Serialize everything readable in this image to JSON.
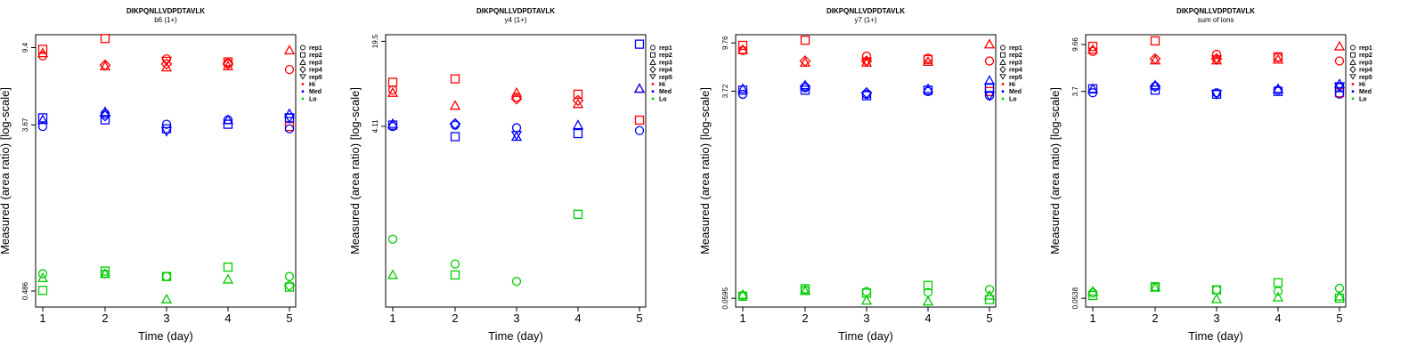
{
  "chart_data": [
    {
      "type": "scatter",
      "title": "DIKPQNLLVDPDTAVLK",
      "subtitle": "b6 (1+)",
      "xlabel": "Time (day)",
      "ylabel": "Measured (area ratio) [log-scale]",
      "ylim": [
        0.4,
        11
      ],
      "x_ticks": [
        "1",
        "2",
        "3",
        "4",
        "5"
      ],
      "y_ticks": [
        "0.486",
        "3.67",
        "9.4"
      ],
      "y_tick_values": [
        0.486,
        3.67,
        9.4
      ],
      "y_scale": "log",
      "legend": [
        "rep1",
        "rep2",
        "rep3",
        "rep4",
        "rep5",
        "Hi",
        "Med",
        "Lo"
      ],
      "legend_position": "right",
      "series": [
        {
          "name": "Hi",
          "color": "#ff0000",
          "rep1": [
            8.5,
            null,
            8.2,
            7.8,
            7.2
          ],
          "rep2": [
            9.2,
            10.5,
            null,
            7.9,
            3.6
          ],
          "rep3": [
            8.8,
            7.5,
            7.4,
            7.5,
            9.1
          ],
          "rep4": [
            null,
            7.6,
            7.7,
            7.7,
            null
          ],
          "rep5": [
            null,
            null,
            8.0,
            null,
            null
          ]
        },
        {
          "name": "Med",
          "color": "#0000ff",
          "rep1": [
            3.6,
            4.2,
            3.7,
            3.9,
            3.5
          ],
          "rep2": [
            4.0,
            3.9,
            3.5,
            3.7,
            4.0
          ],
          "rep3": [
            3.9,
            4.3,
            null,
            3.9,
            4.2
          ],
          "rep4": [
            null,
            4.1,
            null,
            null,
            null
          ],
          "rep5": [
            null,
            null,
            3.4,
            null,
            4.0
          ]
        },
        {
          "name": "Lo",
          "color": "#00cc00",
          "rep1": [
            0.6,
            0.6,
            0.58,
            null,
            0.58
          ],
          "rep2": [
            0.49,
            0.62,
            0.58,
            0.65,
            0.51
          ],
          "rep3": [
            0.57,
            0.6,
            0.44,
            0.56,
            null
          ],
          "rep4": [
            null,
            null,
            null,
            null,
            0.52
          ],
          "rep5": [
            null,
            null,
            null,
            null,
            null
          ]
        }
      ]
    },
    {
      "type": "scatter",
      "title": "DIKPQNLLVDPDTAVLK",
      "subtitle": "y4 (1+)",
      "xlabel": "Time (day)",
      "ylabel": "Measured (area ratio) [log-scale]",
      "ylim": [
        0.15,
        22
      ],
      "x_ticks": [
        "1",
        "2",
        "3",
        "4",
        "5"
      ],
      "y_ticks": [
        "4.11",
        "19.5"
      ],
      "y_tick_values": [
        4.11,
        19.5
      ],
      "y_scale": "log",
      "legend": [
        "rep1",
        "rep2",
        "rep3",
        "rep4",
        "rep5",
        "Hi",
        "Med",
        "Lo"
      ],
      "legend_position": "right",
      "series": [
        {
          "name": "Hi",
          "color": "#ff0000",
          "rep1": [
            8.0,
            null,
            7.0,
            null,
            null
          ],
          "rep2": [
            9.2,
            9.8,
            null,
            7.4,
            4.6
          ],
          "rep3": [
            7.6,
            6.0,
            7.6,
            6.2,
            8.2
          ],
          "rep4": [
            null,
            null,
            6.8,
            6.6,
            null
          ],
          "rep5": [
            null,
            null,
            null,
            null,
            null
          ]
        },
        {
          "name": "Med",
          "color": "#0000ff",
          "rep1": [
            4.1,
            4.2,
            4.0,
            null,
            3.8
          ],
          "rep2": [
            4.2,
            3.4,
            null,
            3.6,
            18.5
          ],
          "rep3": [
            4.3,
            null,
            3.4,
            4.2,
            8.2
          ],
          "rep4": [
            null,
            4.3,
            null,
            null,
            null
          ],
          "rep5": [
            null,
            null,
            3.5,
            null,
            null
          ]
        },
        {
          "name": "Lo",
          "color": "#00cc00",
          "rep1": [
            0.52,
            0.33,
            0.24,
            null,
            null
          ],
          "rep2": [
            null,
            0.27,
            null,
            0.82,
            null
          ],
          "rep3": [
            0.27,
            null,
            null,
            null,
            null
          ],
          "rep4": [
            null,
            null,
            null,
            null,
            null
          ],
          "rep5": [
            null,
            null,
            null,
            null,
            null
          ]
        }
      ]
    },
    {
      "type": "scatter",
      "title": "DIKPQNLLVDPDTAVLK",
      "subtitle": "y7 (1+)",
      "xlabel": "Time (day)",
      "ylabel": "Measured (area ratio) [log-scale]",
      "ylim": [
        0.05,
        11.5
      ],
      "x_ticks": [
        "1",
        "2",
        "3",
        "4",
        "5"
      ],
      "y_ticks": [
        "0.0595",
        "3.72",
        "9.76"
      ],
      "y_tick_values": [
        0.0595,
        3.72,
        9.76
      ],
      "y_scale": "log",
      "legend": [
        "rep1",
        "rep2",
        "rep3",
        "rep4",
        "rep5",
        "Hi",
        "Med",
        "Lo"
      ],
      "legend_position": "right",
      "series": [
        {
          "name": "Hi",
          "color": "#ff0000",
          "rep1": [
            8.4,
            null,
            7.5,
            7.2,
            6.8
          ],
          "rep2": [
            9.3,
            10.3,
            null,
            7.0,
            3.7
          ],
          "rep3": [
            8.5,
            6.6,
            6.6,
            6.7,
            9.5
          ],
          "rep4": [
            null,
            6.8,
            6.8,
            null,
            null
          ],
          "rep5": [
            null,
            null,
            6.7,
            null,
            null
          ]
        },
        {
          "name": "Med",
          "color": "#0000ff",
          "rep1": [
            3.5,
            4.0,
            3.5,
            3.7,
            3.4
          ],
          "rep2": [
            3.8,
            3.8,
            3.4,
            3.8,
            4.0
          ],
          "rep3": [
            3.9,
            4.2,
            null,
            3.9,
            4.6
          ],
          "rep4": [
            null,
            4.1,
            3.6,
            null,
            null
          ],
          "rep5": [
            null,
            null,
            null,
            null,
            3.4
          ]
        },
        {
          "name": "Lo",
          "color": "#00cc00",
          "rep1": [
            0.063,
            0.07,
            0.068,
            0.067,
            0.071
          ],
          "rep2": [
            0.062,
            0.072,
            0.066,
            0.077,
            0.058
          ],
          "rep3": [
            0.064,
            0.069,
            0.057,
            0.056,
            0.063
          ],
          "rep4": [
            null,
            null,
            null,
            null,
            null
          ],
          "rep5": [
            null,
            null,
            null,
            null,
            null
          ]
        }
      ]
    },
    {
      "type": "scatter",
      "title": "DIKPQNLLVDPDTAVLK",
      "subtitle": "sum of ions",
      "xlabel": "Time (day)",
      "ylabel": "Measured (area ratio) [log-scale]",
      "ylim": [
        0.045,
        11.8
      ],
      "x_ticks": [
        "1",
        "2",
        "3",
        "4",
        "5"
      ],
      "y_ticks": [
        "0.0538",
        "3.7",
        "9.66"
      ],
      "y_tick_values": [
        0.0538,
        3.7,
        9.66
      ],
      "y_scale": "log",
      "legend": [
        "rep1",
        "rep2",
        "rep3",
        "rep4",
        "rep5",
        "Hi",
        "Med",
        "Lo"
      ],
      "legend_position": "right",
      "series": [
        {
          "name": "Hi",
          "color": "#ff0000",
          "rep1": [
            8.4,
            null,
            7.9,
            7.4,
            6.9
          ],
          "rep2": [
            9.3,
            10.4,
            null,
            7.5,
            3.6
          ],
          "rep3": [
            8.7,
            7.0,
            7.0,
            7.1,
            9.3
          ],
          "rep4": [
            null,
            7.2,
            7.2,
            null,
            null
          ],
          "rep5": [
            null,
            null,
            7.1,
            null,
            null
          ]
        },
        {
          "name": "Med",
          "color": "#0000ff",
          "rep1": [
            3.6,
            4.1,
            3.6,
            3.8,
            3.5
          ],
          "rep2": [
            3.9,
            3.8,
            3.5,
            3.7,
            4.0
          ],
          "rep3": [
            3.9,
            4.2,
            null,
            3.9,
            4.3
          ],
          "rep4": [
            null,
            4.1,
            null,
            null,
            null
          ],
          "rep5": [
            null,
            null,
            3.5,
            null,
            4.1
          ]
        },
        {
          "name": "Lo",
          "color": "#00cc00",
          "rep1": [
            0.06,
            0.068,
            0.064,
            0.062,
            0.066
          ],
          "rep2": [
            0.057,
            0.068,
            0.064,
            0.074,
            0.054
          ],
          "rep3": [
            0.062,
            0.067,
            0.053,
            0.055,
            0.056
          ],
          "rep4": [
            null,
            null,
            null,
            null,
            null
          ],
          "rep5": [
            null,
            null,
            null,
            null,
            null
          ]
        }
      ]
    }
  ]
}
